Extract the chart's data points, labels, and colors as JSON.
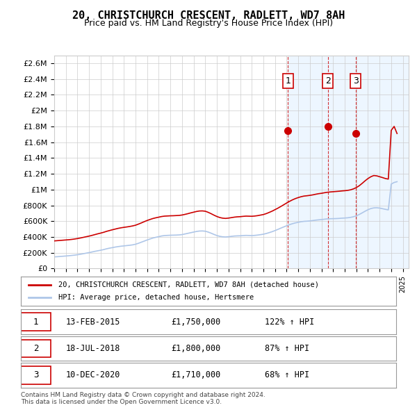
{
  "title": "20, CHRISTCHURCH CRESCENT, RADLETT, WD7 8AH",
  "subtitle": "Price paid vs. HM Land Registry's House Price Index (HPI)",
  "background_color": "#ffffff",
  "plot_bg_color": "#ffffff",
  "grid_color": "#cccccc",
  "ylim": [
    0,
    2700000
  ],
  "yticks": [
    0,
    200000,
    400000,
    600000,
    800000,
    1000000,
    1200000,
    1400000,
    1600000,
    1800000,
    2000000,
    2200000,
    2400000,
    2600000
  ],
  "ytick_labels": [
    "£0",
    "£200K",
    "£400K",
    "£600K",
    "£800K",
    "£1M",
    "£1.2M",
    "£1.4M",
    "£1.6M",
    "£1.8M",
    "£2M",
    "£2.2M",
    "£2.4M",
    "£2.6M"
  ],
  "xlim_start": 1995.0,
  "xlim_end": 2025.5,
  "xticks": [
    1995,
    1996,
    1997,
    1998,
    1999,
    2000,
    2001,
    2002,
    2003,
    2004,
    2005,
    2006,
    2007,
    2008,
    2009,
    2010,
    2011,
    2012,
    2013,
    2014,
    2015,
    2016,
    2017,
    2018,
    2019,
    2020,
    2021,
    2022,
    2023,
    2024,
    2025
  ],
  "hpi_color": "#aec6e8",
  "price_color": "#cc0000",
  "sale_marker_color": "#cc0000",
  "vline_color": "#cc0000",
  "vline_style": "--",
  "sale_bg_color": "#ddeeff",
  "legend_line_red": "20, CHRISTCHURCH CRESCENT, RADLETT, WD7 8AH (detached house)",
  "legend_line_blue": "HPI: Average price, detached house, Hertsmere",
  "sales": [
    {
      "num": 1,
      "date_str": "13-FEB-2015",
      "date_x": 2015.12,
      "price": 1750000,
      "hpi_pct": "122% ↑ HPI"
    },
    {
      "num": 2,
      "date_str": "18-JUL-2018",
      "date_x": 2018.54,
      "price": 1800000,
      "hpi_pct": "87% ↑ HPI"
    },
    {
      "num": 3,
      "date_str": "10-DEC-2020",
      "date_x": 2020.94,
      "price": 1710000,
      "hpi_pct": "68% ↑ HPI"
    }
  ],
  "footer": "Contains HM Land Registry data © Crown copyright and database right 2024.\nThis data is licensed under the Open Government Licence v3.0.",
  "hpi_data_x": [
    1995.0,
    1995.25,
    1995.5,
    1995.75,
    1996.0,
    1996.25,
    1996.5,
    1996.75,
    1997.0,
    1997.25,
    1997.5,
    1997.75,
    1998.0,
    1998.25,
    1998.5,
    1998.75,
    1999.0,
    1999.25,
    1999.5,
    1999.75,
    2000.0,
    2000.25,
    2000.5,
    2000.75,
    2001.0,
    2001.25,
    2001.5,
    2001.75,
    2002.0,
    2002.25,
    2002.5,
    2002.75,
    2003.0,
    2003.25,
    2003.5,
    2003.75,
    2004.0,
    2004.25,
    2004.5,
    2004.75,
    2005.0,
    2005.25,
    2005.5,
    2005.75,
    2006.0,
    2006.25,
    2006.5,
    2006.75,
    2007.0,
    2007.25,
    2007.5,
    2007.75,
    2008.0,
    2008.25,
    2008.5,
    2008.75,
    2009.0,
    2009.25,
    2009.5,
    2009.75,
    2010.0,
    2010.25,
    2010.5,
    2010.75,
    2011.0,
    2011.25,
    2011.5,
    2011.75,
    2012.0,
    2012.25,
    2012.5,
    2012.75,
    2013.0,
    2013.25,
    2013.5,
    2013.75,
    2014.0,
    2014.25,
    2014.5,
    2014.75,
    2015.0,
    2015.25,
    2015.5,
    2015.75,
    2016.0,
    2016.25,
    2016.5,
    2016.75,
    2017.0,
    2017.25,
    2017.5,
    2017.75,
    2018.0,
    2018.25,
    2018.5,
    2018.75,
    2019.0,
    2019.25,
    2019.5,
    2019.75,
    2020.0,
    2020.25,
    2020.5,
    2020.75,
    2021.0,
    2021.25,
    2021.5,
    2021.75,
    2022.0,
    2022.25,
    2022.5,
    2022.75,
    2023.0,
    2023.25,
    2023.5,
    2023.75,
    2024.0,
    2024.25,
    2024.5
  ],
  "hpi_data_y": [
    148000,
    150000,
    153000,
    156000,
    159000,
    162000,
    166000,
    170000,
    175000,
    181000,
    188000,
    195000,
    202000,
    210000,
    218000,
    225000,
    232000,
    240000,
    250000,
    258000,
    265000,
    272000,
    278000,
    283000,
    287000,
    291000,
    295000,
    300000,
    308000,
    320000,
    334000,
    348000,
    362000,
    375000,
    387000,
    396000,
    404000,
    413000,
    418000,
    420000,
    422000,
    423000,
    424000,
    426000,
    430000,
    438000,
    446000,
    454000,
    462000,
    470000,
    475000,
    476000,
    473000,
    462000,
    448000,
    432000,
    418000,
    408000,
    402000,
    400000,
    403000,
    408000,
    412000,
    414000,
    415000,
    418000,
    420000,
    419000,
    418000,
    420000,
    424000,
    429000,
    435000,
    444000,
    455000,
    467000,
    481000,
    496000,
    512000,
    527000,
    542000,
    556000,
    568000,
    578000,
    586000,
    593000,
    598000,
    600000,
    603000,
    608000,
    613000,
    617000,
    620000,
    625000,
    629000,
    631000,
    632000,
    633000,
    635000,
    638000,
    640000,
    643000,
    648000,
    656000,
    668000,
    685000,
    705000,
    726000,
    745000,
    760000,
    768000,
    770000,
    766000,
    758000,
    750000,
    743000,
    1070000,
    1090000,
    1100000
  ],
  "price_data_x": [
    1995.0,
    1995.25,
    1995.5,
    1995.75,
    1996.0,
    1996.25,
    1996.5,
    1996.75,
    1997.0,
    1997.25,
    1997.5,
    1997.75,
    1998.0,
    1998.25,
    1998.5,
    1998.75,
    1999.0,
    1999.25,
    1999.5,
    1999.75,
    2000.0,
    2000.25,
    2000.5,
    2000.75,
    2001.0,
    2001.25,
    2001.5,
    2001.75,
    2002.0,
    2002.25,
    2002.5,
    2002.75,
    2003.0,
    2003.25,
    2003.5,
    2003.75,
    2004.0,
    2004.25,
    2004.5,
    2004.75,
    2005.0,
    2005.25,
    2005.5,
    2005.75,
    2006.0,
    2006.25,
    2006.5,
    2006.75,
    2007.0,
    2007.25,
    2007.5,
    2007.75,
    2008.0,
    2008.25,
    2008.5,
    2008.75,
    2009.0,
    2009.25,
    2009.5,
    2009.75,
    2010.0,
    2010.25,
    2010.5,
    2010.75,
    2011.0,
    2011.25,
    2011.5,
    2011.75,
    2012.0,
    2012.25,
    2012.5,
    2012.75,
    2013.0,
    2013.25,
    2013.5,
    2013.75,
    2014.0,
    2014.25,
    2014.5,
    2014.75,
    2015.0,
    2015.25,
    2015.5,
    2015.75,
    2016.0,
    2016.25,
    2016.5,
    2016.75,
    2017.0,
    2017.25,
    2017.5,
    2017.75,
    2018.0,
    2018.25,
    2018.5,
    2018.75,
    2019.0,
    2019.25,
    2019.5,
    2019.75,
    2020.0,
    2020.25,
    2020.5,
    2020.75,
    2021.0,
    2021.25,
    2021.5,
    2021.75,
    2022.0,
    2022.25,
    2022.5,
    2022.75,
    2023.0,
    2023.25,
    2023.5,
    2023.75,
    2024.0,
    2024.25,
    2024.5
  ],
  "price_data_y": [
    350000,
    353000,
    356000,
    359000,
    362000,
    365000,
    369000,
    374000,
    380000,
    387000,
    395000,
    403000,
    411000,
    420000,
    430000,
    440000,
    449000,
    459000,
    471000,
    481000,
    491000,
    500000,
    509000,
    516000,
    522000,
    527000,
    533000,
    540000,
    549000,
    563000,
    578000,
    594000,
    609000,
    622000,
    634000,
    643000,
    651000,
    659000,
    664000,
    666000,
    668000,
    669000,
    671000,
    673000,
    678000,
    686000,
    695000,
    705000,
    714000,
    723000,
    729000,
    730000,
    726000,
    712000,
    695000,
    676000,
    659000,
    646000,
    638000,
    635000,
    639000,
    645000,
    651000,
    655000,
    657000,
    661000,
    664000,
    663000,
    662000,
    665000,
    670000,
    677000,
    684000,
    696000,
    711000,
    727000,
    746000,
    765000,
    786000,
    808000,
    830000,
    851000,
    870000,
    886000,
    899000,
    910000,
    918000,
    922000,
    927000,
    933000,
    941000,
    948000,
    953000,
    960000,
    966000,
    970000,
    973000,
    976000,
    979000,
    983000,
    986000,
    990000,
    997000,
    1009000,
    1026000,
    1049000,
    1079000,
    1111000,
    1140000,
    1163000,
    1178000,
    1174000,
    1163000,
    1152000,
    1140000,
    1133000,
    1750000,
    1800000,
    1710000
  ]
}
